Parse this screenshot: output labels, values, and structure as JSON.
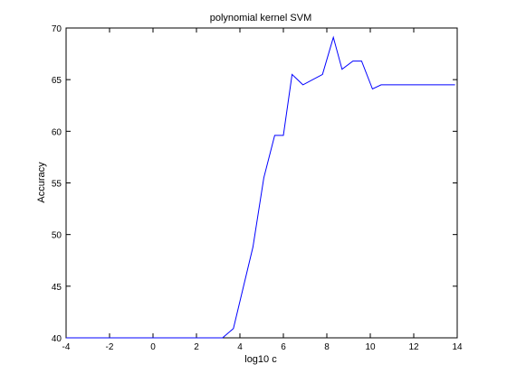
{
  "chart_data": {
    "type": "line",
    "title": "polynomial kernel SVM",
    "xlabel": "log10 c",
    "ylabel": "Accuracy",
    "xlim": [
      -4,
      14
    ],
    "ylim": [
      40,
      70
    ],
    "xticks": [
      "-4",
      "-2",
      "0",
      "2",
      "4",
      "6",
      "8",
      "10",
      "12",
      "14"
    ],
    "yticks": [
      "40",
      "45",
      "50",
      "55",
      "60",
      "65",
      "70"
    ],
    "grid": false,
    "line_color": "#0000ff",
    "series": [
      {
        "x": [
          -4,
          3.2,
          3.7,
          4.6,
          5.1,
          5.6,
          6.0,
          6.4,
          6.9,
          7.8,
          8.3,
          8.7,
          9.2,
          9.6,
          10.1,
          10.5,
          11.0,
          11.4,
          12.0,
          12.5,
          13.0,
          13.5,
          13.9
        ],
        "y": [
          40.0,
          40.0,
          40.9,
          48.8,
          55.5,
          59.6,
          59.6,
          65.5,
          64.5,
          65.5,
          69.1,
          66.0,
          66.8,
          66.8,
          64.1,
          64.5,
          64.5,
          64.5,
          64.5,
          64.5,
          64.5,
          64.5,
          64.5
        ]
      }
    ]
  }
}
